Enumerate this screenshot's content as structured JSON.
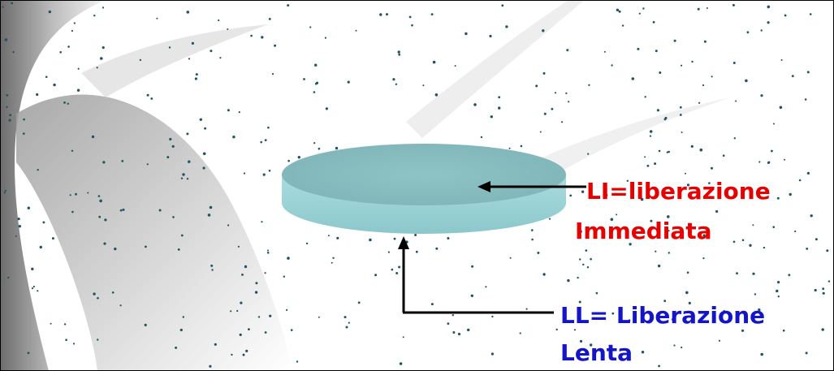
{
  "labels": {
    "immediate": {
      "line1": "LI=liberazione",
      "line2": "Immediata"
    },
    "slow": {
      "line1": "LL= Liberazione",
      "line2": "Lenta"
    }
  }
}
